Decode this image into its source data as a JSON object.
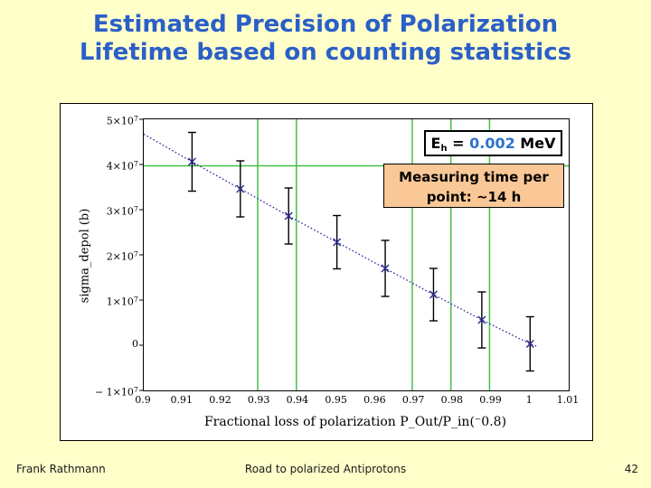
{
  "slide": {
    "background_color": "#ffffca",
    "title_color": "#2b5fc8",
    "title_line1": "Estimated Precision of Polarization",
    "title_line2": "Lifetime based on counting statistics",
    "footer_left": "Frank Rathmann",
    "footer_center": "Road to polarized Antiprotons",
    "slide_number": "42"
  },
  "annotations": {
    "energy_box": {
      "symbol": "E",
      "subscript": "h",
      "equals": " = ",
      "value": "0.002",
      "unit": " MeV",
      "value_color": "#2f72cc"
    },
    "measuring_box": {
      "line1": "Measuring time per",
      "line2": "point: ~14 h",
      "bg_color": "#fac896"
    }
  },
  "chart_data": {
    "type": "line",
    "title": "",
    "xlabel": "Fractional loss of polarization P_Out/P_in(⁻0.8)",
    "ylabel": "sigma_depol (b)",
    "xlim": [
      0.9,
      1.01
    ],
    "ylim": [
      -10000000.0,
      50000000.0
    ],
    "legend": "none",
    "grid": "green marker lines only",
    "grid_color": "#46c046",
    "line_color": "#2b2b96",
    "errorbar_color": "#000000",
    "x_ticks": [
      {
        "label": "0.9",
        "value": 0.9
      },
      {
        "label": "0.91",
        "value": 0.91
      },
      {
        "label": "0.92",
        "value": 0.92
      },
      {
        "label": "0.93",
        "value": 0.93
      },
      {
        "label": "0.94",
        "value": 0.94
      },
      {
        "label": "0.95",
        "value": 0.95
      },
      {
        "label": "0.96",
        "value": 0.96
      },
      {
        "label": "0.97",
        "value": 0.97
      },
      {
        "label": "0.98",
        "value": 0.98
      },
      {
        "label": "0.99",
        "value": 0.99
      },
      {
        "label": "1",
        "value": 1
      },
      {
        "label": "1.01",
        "value": 1.01
      }
    ],
    "y_ticks": [
      {
        "mantissa": "5×10",
        "exp": "7",
        "value": 50000000.0
      },
      {
        "mantissa": "4×10",
        "exp": "7",
        "value": 40000000.0
      },
      {
        "mantissa": "3×10",
        "exp": "7",
        "value": 30000000.0
      },
      {
        "mantissa": "2×10",
        "exp": "7",
        "value": 20000000.0
      },
      {
        "mantissa": "1×10",
        "exp": "7",
        "value": 10000000.0
      },
      {
        "mantissa": "0",
        "exp": "",
        "value": 0
      },
      {
        "mantissa": "− 1×10",
        "exp": "7",
        "value": -10000000.0
      }
    ],
    "green_vlines_x": [
      0.9295,
      0.9395,
      0.9695,
      0.9795,
      0.9895
    ],
    "green_hlines_y": [
      39700000.0
    ],
    "series": [
      {
        "name": "sigma_depol vs fractional polarization loss",
        "marker": "x",
        "line_style": "dotted",
        "line_start": {
          "x": 0.9,
          "y": 46700000.0
        },
        "line_end": {
          "x": 1.002,
          "y": -300000.0
        },
        "points": [
          {
            "x": 0.9125,
            "y": 40600000.0,
            "yerr": 6500000.0
          },
          {
            "x": 0.925,
            "y": 34600000.0,
            "yerr": 6200000.0
          },
          {
            "x": 0.9375,
            "y": 28600000.0,
            "yerr": 6200000.0
          },
          {
            "x": 0.95,
            "y": 22800000.0,
            "yerr": 5900000.0
          },
          {
            "x": 0.9625,
            "y": 17000000.0,
            "yerr": 6200000.0
          },
          {
            "x": 0.975,
            "y": 11200000.0,
            "yerr": 5800000.0
          },
          {
            "x": 0.9875,
            "y": 5600000.0,
            "yerr": 6200000.0
          },
          {
            "x": 1.0,
            "y": 300000.0,
            "yerr": 6000000.0
          }
        ]
      }
    ]
  }
}
